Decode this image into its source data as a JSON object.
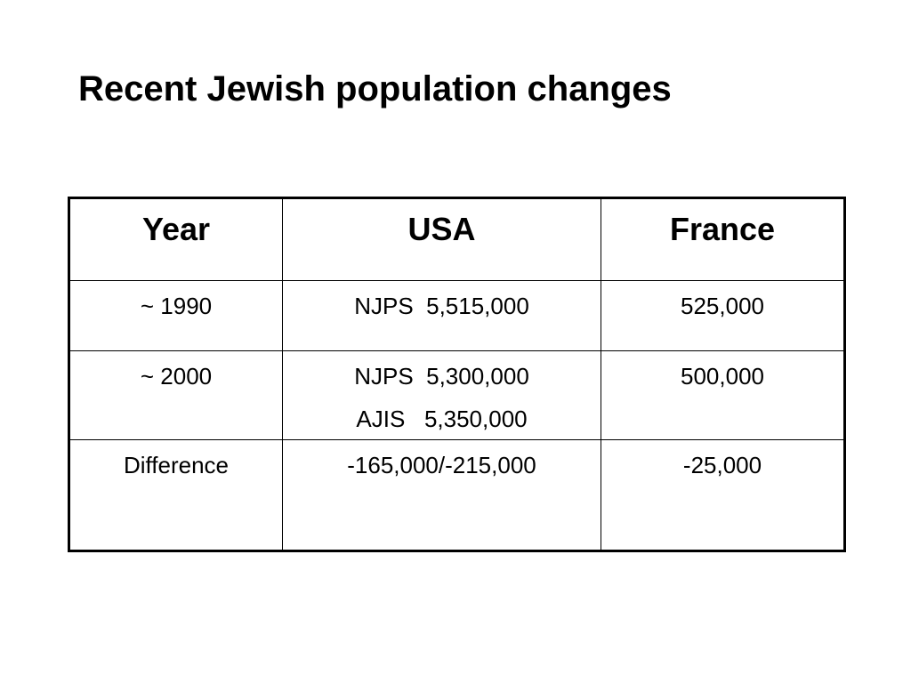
{
  "title": "Recent Jewish population changes",
  "table": {
    "headers": [
      "Year",
      "USA",
      "France"
    ],
    "rows": [
      {
        "year": "~ 1990",
        "usa": [
          "NJPS  5,515,000"
        ],
        "france": "525,000"
      },
      {
        "year": "~ 2000",
        "usa": [
          "NJPS  5,300,000",
          "AJIS   5,350,000"
        ],
        "france": "500,000"
      },
      {
        "year": "Difference",
        "usa": [
          "-165,000/-215,000"
        ],
        "france": "-25,000"
      }
    ]
  }
}
